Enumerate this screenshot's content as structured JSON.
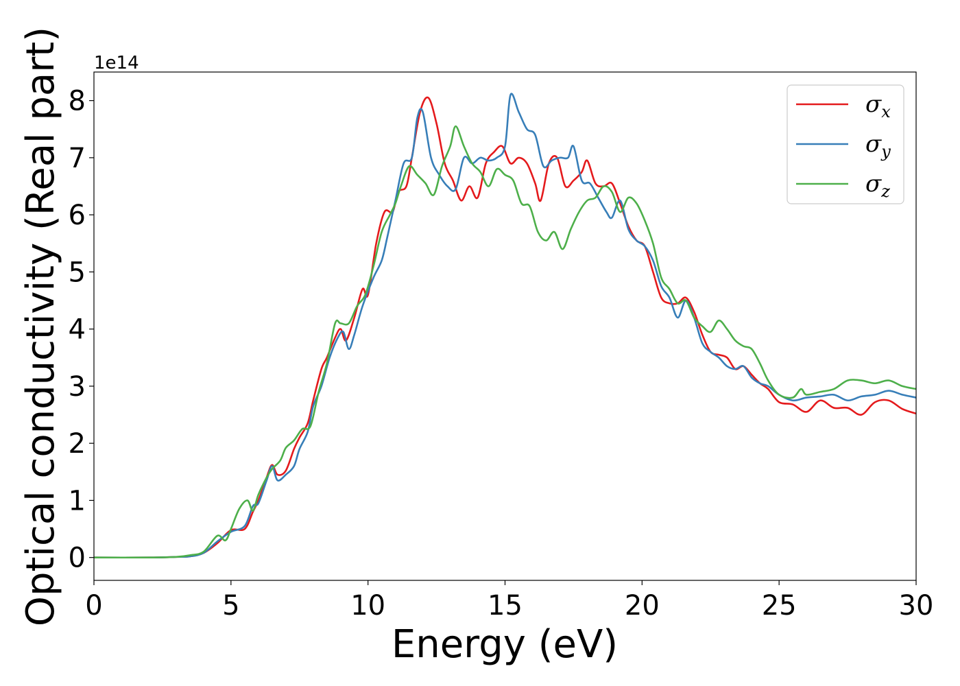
{
  "chart_data": {
    "type": "line",
    "xlabel": "Energy (eV)",
    "ylabel": "Optical conductivity (Real part)",
    "y_offset_label": "1e14",
    "xlim": [
      0,
      30
    ],
    "ylim": [
      -0.4,
      8.5
    ],
    "xticks": [
      0,
      5,
      10,
      15,
      20,
      25,
      30
    ],
    "xtick_labels": [
      "0",
      "5",
      "10",
      "15",
      "20",
      "25",
      "30"
    ],
    "yticks": [
      0,
      1,
      2,
      3,
      4,
      5,
      6,
      7,
      8
    ],
    "ytick_labels": [
      "0",
      "1",
      "2",
      "3",
      "4",
      "5",
      "6",
      "7",
      "8"
    ],
    "grid": false,
    "legend_position": "top-right",
    "series": [
      {
        "name": "σ",
        "subscript": "x",
        "color": "#e41a1c",
        "points": [
          [
            0,
            0
          ],
          [
            2,
            0
          ],
          [
            3,
            0.01
          ],
          [
            3.5,
            0.02
          ],
          [
            4,
            0.08
          ],
          [
            4.5,
            0.25
          ],
          [
            5,
            0.48
          ],
          [
            5.5,
            0.5
          ],
          [
            5.8,
            0.8
          ],
          [
            6,
            1.0
          ],
          [
            6.3,
            1.4
          ],
          [
            6.5,
            1.62
          ],
          [
            6.7,
            1.45
          ],
          [
            7,
            1.52
          ],
          [
            7.3,
            1.9
          ],
          [
            7.5,
            2.1
          ],
          [
            7.8,
            2.35
          ],
          [
            8,
            2.75
          ],
          [
            8.3,
            3.3
          ],
          [
            8.5,
            3.5
          ],
          [
            8.8,
            3.85
          ],
          [
            9,
            4.0
          ],
          [
            9.2,
            3.8
          ],
          [
            9.5,
            4.2
          ],
          [
            9.8,
            4.7
          ],
          [
            10,
            4.6
          ],
          [
            10.3,
            5.5
          ],
          [
            10.6,
            6.05
          ],
          [
            10.9,
            6.05
          ],
          [
            11.1,
            6.4
          ],
          [
            11.4,
            6.5
          ],
          [
            11.6,
            7.0
          ],
          [
            11.9,
            7.8
          ],
          [
            12.2,
            8.05
          ],
          [
            12.5,
            7.6
          ],
          [
            12.8,
            6.9
          ],
          [
            13.1,
            6.6
          ],
          [
            13.4,
            6.25
          ],
          [
            13.7,
            6.5
          ],
          [
            14,
            6.3
          ],
          [
            14.3,
            6.9
          ],
          [
            14.6,
            7.1
          ],
          [
            14.9,
            7.2
          ],
          [
            15.2,
            6.9
          ],
          [
            15.5,
            7.0
          ],
          [
            15.8,
            6.9
          ],
          [
            16.1,
            6.55
          ],
          [
            16.3,
            6.25
          ],
          [
            16.6,
            6.9
          ],
          [
            16.9,
            7.0
          ],
          [
            17.2,
            6.5
          ],
          [
            17.5,
            6.6
          ],
          [
            17.8,
            6.75
          ],
          [
            18,
            6.95
          ],
          [
            18.3,
            6.55
          ],
          [
            18.6,
            6.5
          ],
          [
            18.9,
            6.55
          ],
          [
            19.2,
            6.2
          ],
          [
            19.5,
            5.8
          ],
          [
            19.8,
            5.55
          ],
          [
            20.1,
            5.45
          ],
          [
            20.4,
            5.0
          ],
          [
            20.7,
            4.55
          ],
          [
            21,
            4.45
          ],
          [
            21.3,
            4.45
          ],
          [
            21.6,
            4.55
          ],
          [
            21.9,
            4.3
          ],
          [
            22.2,
            3.9
          ],
          [
            22.5,
            3.6
          ],
          [
            22.8,
            3.55
          ],
          [
            23.1,
            3.5
          ],
          [
            23.4,
            3.3
          ],
          [
            23.7,
            3.35
          ],
          [
            24,
            3.2
          ],
          [
            24.3,
            3.05
          ],
          [
            24.6,
            2.95
          ],
          [
            25,
            2.72
          ],
          [
            25.5,
            2.68
          ],
          [
            26,
            2.55
          ],
          [
            26.5,
            2.75
          ],
          [
            27,
            2.62
          ],
          [
            27.5,
            2.62
          ],
          [
            28,
            2.5
          ],
          [
            28.5,
            2.72
          ],
          [
            29,
            2.75
          ],
          [
            29.5,
            2.6
          ],
          [
            30,
            2.52
          ]
        ]
      },
      {
        "name": "σ",
        "subscript": "y",
        "color": "#377eb8",
        "points": [
          [
            0,
            0
          ],
          [
            2,
            0
          ],
          [
            3,
            0.01
          ],
          [
            3.5,
            0.02
          ],
          [
            4,
            0.08
          ],
          [
            4.5,
            0.28
          ],
          [
            5,
            0.45
          ],
          [
            5.5,
            0.55
          ],
          [
            5.8,
            0.9
          ],
          [
            6,
            0.95
          ],
          [
            6.3,
            1.35
          ],
          [
            6.5,
            1.6
          ],
          [
            6.7,
            1.35
          ],
          [
            7,
            1.45
          ],
          [
            7.3,
            1.6
          ],
          [
            7.5,
            1.9
          ],
          [
            7.8,
            2.2
          ],
          [
            8,
            2.65
          ],
          [
            8.3,
            3.0
          ],
          [
            8.6,
            3.5
          ],
          [
            8.9,
            3.85
          ],
          [
            9.1,
            3.95
          ],
          [
            9.3,
            3.65
          ],
          [
            9.5,
            3.9
          ],
          [
            9.8,
            4.4
          ],
          [
            10.2,
            4.9
          ],
          [
            10.5,
            5.2
          ],
          [
            10.7,
            5.6
          ],
          [
            11,
            6.25
          ],
          [
            11.3,
            6.9
          ],
          [
            11.6,
            7.0
          ],
          [
            11.8,
            7.7
          ],
          [
            12,
            7.8
          ],
          [
            12.3,
            7.0
          ],
          [
            12.6,
            6.7
          ],
          [
            12.9,
            6.5
          ],
          [
            13.2,
            6.45
          ],
          [
            13.5,
            7.0
          ],
          [
            13.8,
            6.9
          ],
          [
            14.1,
            7.0
          ],
          [
            14.4,
            6.95
          ],
          [
            14.7,
            7.0
          ],
          [
            15,
            7.2
          ],
          [
            15.2,
            8.1
          ],
          [
            15.5,
            7.8
          ],
          [
            15.8,
            7.5
          ],
          [
            16.1,
            7.4
          ],
          [
            16.4,
            6.85
          ],
          [
            16.7,
            6.95
          ],
          [
            17,
            7.0
          ],
          [
            17.3,
            7.0
          ],
          [
            17.5,
            7.2
          ],
          [
            17.8,
            6.6
          ],
          [
            18.1,
            6.55
          ],
          [
            18.4,
            6.3
          ],
          [
            18.7,
            6.05
          ],
          [
            18.9,
            5.95
          ],
          [
            19.2,
            6.25
          ],
          [
            19.5,
            5.75
          ],
          [
            19.8,
            5.55
          ],
          [
            20.1,
            5.45
          ],
          [
            20.4,
            5.2
          ],
          [
            20.7,
            4.75
          ],
          [
            21,
            4.55
          ],
          [
            21.3,
            4.2
          ],
          [
            21.6,
            4.5
          ],
          [
            21.9,
            4.2
          ],
          [
            22.2,
            3.75
          ],
          [
            22.5,
            3.6
          ],
          [
            22.8,
            3.5
          ],
          [
            23.1,
            3.35
          ],
          [
            23.4,
            3.3
          ],
          [
            23.7,
            3.35
          ],
          [
            24,
            3.15
          ],
          [
            24.3,
            3.05
          ],
          [
            24.6,
            3.0
          ],
          [
            25,
            2.85
          ],
          [
            25.5,
            2.75
          ],
          [
            26,
            2.8
          ],
          [
            26.5,
            2.82
          ],
          [
            27,
            2.85
          ],
          [
            27.5,
            2.75
          ],
          [
            28,
            2.82
          ],
          [
            28.5,
            2.85
          ],
          [
            29,
            2.92
          ],
          [
            29.5,
            2.85
          ],
          [
            30,
            2.8
          ]
        ]
      },
      {
        "name": "σ",
        "subscript": "z",
        "color": "#4daf4a",
        "points": [
          [
            0,
            0
          ],
          [
            2,
            0
          ],
          [
            3,
            0.01
          ],
          [
            3.5,
            0.04
          ],
          [
            4,
            0.1
          ],
          [
            4.5,
            0.38
          ],
          [
            4.8,
            0.3
          ],
          [
            5,
            0.5
          ],
          [
            5.3,
            0.85
          ],
          [
            5.6,
            1.0
          ],
          [
            5.8,
            0.82
          ],
          [
            6,
            1.1
          ],
          [
            6.3,
            1.4
          ],
          [
            6.5,
            1.55
          ],
          [
            6.8,
            1.7
          ],
          [
            7,
            1.92
          ],
          [
            7.3,
            2.05
          ],
          [
            7.6,
            2.25
          ],
          [
            7.9,
            2.3
          ],
          [
            8.2,
            2.9
          ],
          [
            8.5,
            3.4
          ],
          [
            8.8,
            4.1
          ],
          [
            9,
            4.1
          ],
          [
            9.3,
            4.1
          ],
          [
            9.6,
            4.4
          ],
          [
            9.9,
            4.6
          ],
          [
            10.2,
            5.1
          ],
          [
            10.5,
            5.7
          ],
          [
            10.8,
            6.0
          ],
          [
            11,
            6.2
          ],
          [
            11.2,
            6.5
          ],
          [
            11.5,
            6.85
          ],
          [
            11.8,
            6.7
          ],
          [
            12.1,
            6.55
          ],
          [
            12.4,
            6.35
          ],
          [
            12.7,
            6.85
          ],
          [
            13,
            7.2
          ],
          [
            13.2,
            7.55
          ],
          [
            13.5,
            7.2
          ],
          [
            13.8,
            6.9
          ],
          [
            14.1,
            6.75
          ],
          [
            14.4,
            6.5
          ],
          [
            14.7,
            6.8
          ],
          [
            15,
            6.7
          ],
          [
            15.3,
            6.6
          ],
          [
            15.6,
            6.2
          ],
          [
            15.9,
            6.15
          ],
          [
            16.2,
            5.7
          ],
          [
            16.5,
            5.55
          ],
          [
            16.8,
            5.7
          ],
          [
            17.1,
            5.4
          ],
          [
            17.4,
            5.75
          ],
          [
            17.7,
            6.05
          ],
          [
            18,
            6.25
          ],
          [
            18.3,
            6.3
          ],
          [
            18.6,
            6.5
          ],
          [
            18.9,
            6.4
          ],
          [
            19.2,
            6.05
          ],
          [
            19.5,
            6.3
          ],
          [
            19.8,
            6.2
          ],
          [
            20.1,
            5.9
          ],
          [
            20.4,
            5.5
          ],
          [
            20.7,
            4.9
          ],
          [
            21,
            4.7
          ],
          [
            21.3,
            4.45
          ],
          [
            21.6,
            4.5
          ],
          [
            21.9,
            4.2
          ],
          [
            22.2,
            4.05
          ],
          [
            22.5,
            3.95
          ],
          [
            22.8,
            4.15
          ],
          [
            23.1,
            4.0
          ],
          [
            23.4,
            3.8
          ],
          [
            23.7,
            3.7
          ],
          [
            24,
            3.65
          ],
          [
            24.3,
            3.4
          ],
          [
            24.6,
            3.1
          ],
          [
            25,
            2.85
          ],
          [
            25.5,
            2.8
          ],
          [
            25.8,
            2.95
          ],
          [
            26,
            2.85
          ],
          [
            26.5,
            2.9
          ],
          [
            27,
            2.95
          ],
          [
            27.5,
            3.1
          ],
          [
            28,
            3.1
          ],
          [
            28.5,
            3.05
          ],
          [
            29,
            3.1
          ],
          [
            29.5,
            3.0
          ],
          [
            30,
            2.95
          ]
        ]
      }
    ]
  }
}
